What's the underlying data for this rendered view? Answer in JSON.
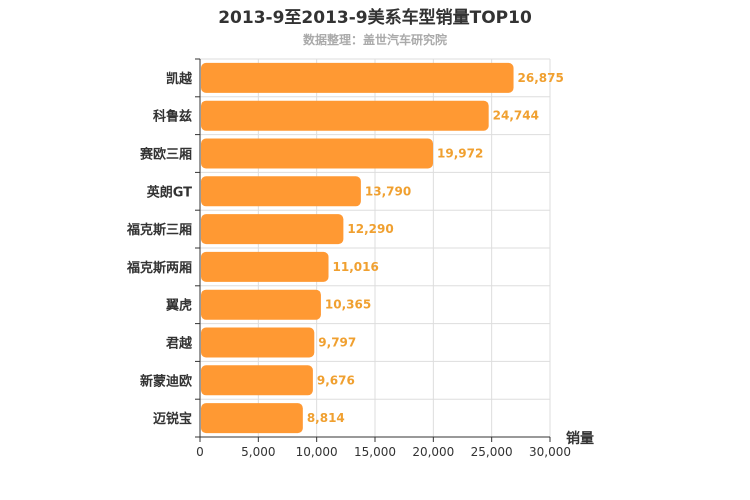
{
  "chart_data": {
    "type": "bar",
    "orientation": "horizontal",
    "title": "2013-9至2013-9美系车型销量TOP10",
    "subtitle": "数据整理：盖世汽车研究院",
    "xlabel": "销量",
    "ylabel": "",
    "categories": [
      "凯越",
      "科鲁兹",
      "赛欧三厢",
      "英朗GT",
      "福克斯三厢",
      "福克斯两厢",
      "翼虎",
      "君越",
      "新蒙迪欧",
      "迈锐宝"
    ],
    "values": [
      26875,
      24744,
      19972,
      13790,
      12290,
      11016,
      10365,
      9797,
      9676,
      8814
    ],
    "value_labels": [
      "26,875",
      "24,744",
      "19,972",
      "13,790",
      "12,290",
      "11,016",
      "10,365",
      "9,797",
      "9,676",
      "8,814"
    ],
    "xlim": [
      0,
      30000
    ],
    "ticks": [
      "0",
      "5,000",
      "10,000",
      "15,000",
      "20,000",
      "25,000",
      "30,000"
    ],
    "grid": true,
    "colors": {
      "bar": "#ff9933",
      "value_label": "#f0a030",
      "grid": "#dddddd",
      "axis": "#333333"
    }
  }
}
